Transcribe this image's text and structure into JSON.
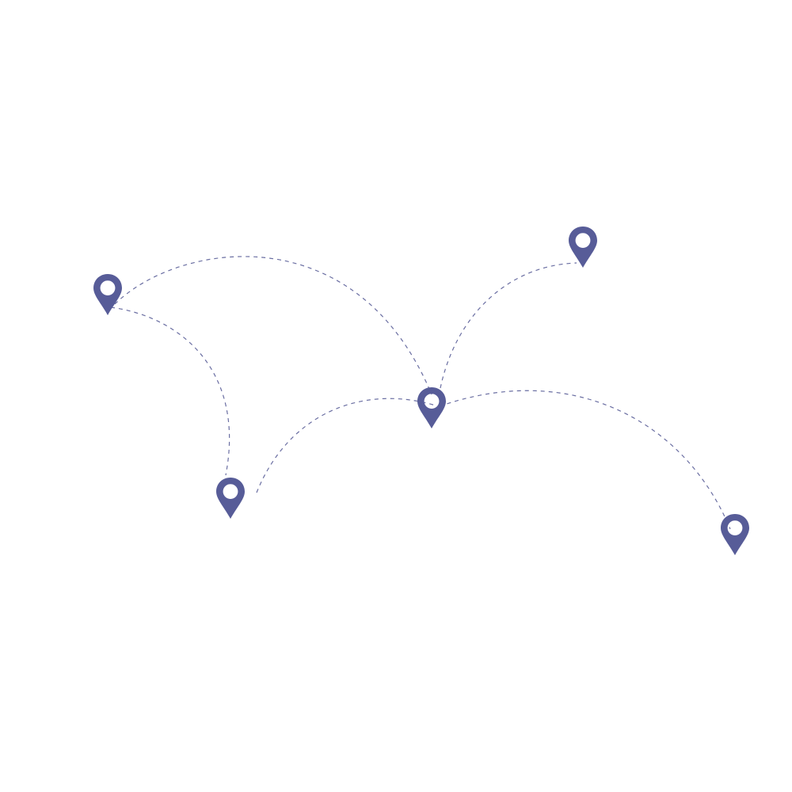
{
  "colors": {
    "pin": "#575c98",
    "pin_hole": "#ffffff",
    "route": "#6a6ea2"
  },
  "icons": {
    "pin": "map-pin-icon"
  },
  "locations": [
    {
      "id": "pin-a"
    },
    {
      "id": "pin-b"
    },
    {
      "id": "pin-c"
    },
    {
      "id": "pin-d"
    },
    {
      "id": "pin-e"
    },
    {
      "id": "pin-f"
    }
  ],
  "routes": [
    {
      "from": "pin-a",
      "to": "pin-b"
    },
    {
      "from": "pin-a",
      "to": "pin-c"
    },
    {
      "from": "pin-b",
      "to": "pin-c"
    },
    {
      "from": "pin-c",
      "to": "pin-d"
    },
    {
      "from": "pin-c",
      "to": "pin-e"
    }
  ]
}
